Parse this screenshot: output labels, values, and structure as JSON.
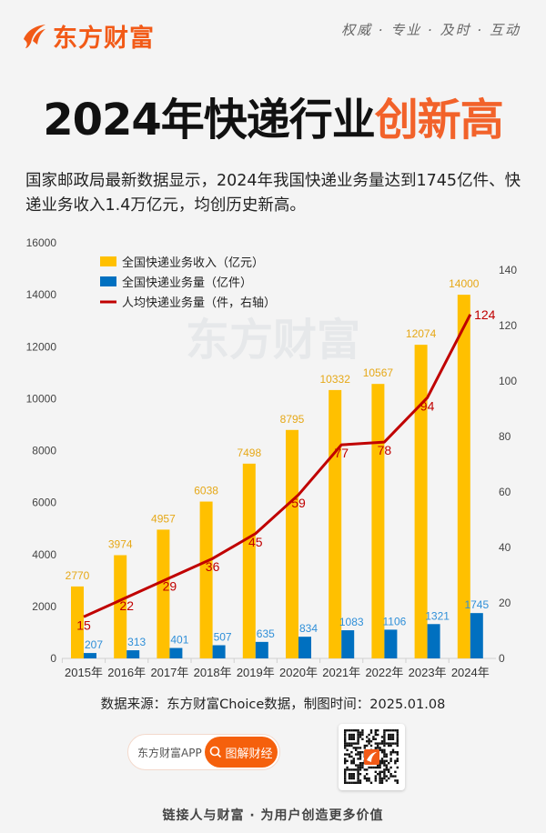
{
  "header": {
    "brand": "东方财富",
    "slogan": "权威 · 专业 · 及时 · 互动"
  },
  "title": {
    "main": "2024年快递行业",
    "highlight": "创新高"
  },
  "summary": "国家邮政局最新数据显示，2024年我国快递业务量达到1745亿件、快递业务收入1.4万亿元，均创历史新高。",
  "watermark": "东方财富",
  "chart_data": {
    "type": "bar",
    "categories": [
      "2015年",
      "2016年",
      "2017年",
      "2018年",
      "2019年",
      "2020年",
      "2021年",
      "2022年",
      "2023年",
      "2024年"
    ],
    "series": [
      {
        "name": "全国快递业务收入（亿元）",
        "type": "bar",
        "axis": "left",
        "color": "#ffc000",
        "values": [
          2770,
          3974,
          4957,
          6038,
          7498,
          8795,
          10332,
          10567,
          12074,
          14000
        ]
      },
      {
        "name": "全国快递业务量（亿件）",
        "type": "bar",
        "axis": "left",
        "color": "#0070c0",
        "values": [
          207,
          313,
          401,
          507,
          635,
          834,
          1083,
          1106,
          1321,
          1745
        ]
      },
      {
        "name": "人均快递业务量（件，右轴）",
        "type": "line",
        "axis": "right",
        "color": "#c00000",
        "values": [
          15,
          22,
          29,
          36,
          45,
          59,
          77,
          78,
          94,
          124
        ]
      }
    ],
    "y_left": {
      "range": [
        0,
        16000
      ],
      "ticks": [
        "0",
        "2000",
        "4000",
        "6000",
        "8000",
        "10000",
        "12000",
        "14000",
        "16000"
      ]
    },
    "y_right": {
      "range": [
        0,
        140
      ],
      "ticks": [
        "0",
        "20",
        "40",
        "60",
        "80",
        "100",
        "120",
        "140"
      ]
    },
    "grid": false,
    "legend": "top-left",
    "label_colors": {
      "revenue": "#e6a817",
      "volume": "#2f8fd8",
      "per_capita": "#c00000"
    }
  },
  "footer": {
    "source": "数据来源：东方财富Choice数据，制图时间：2025.01.08",
    "app_label": "东方财富APP",
    "search_label": "图解财经",
    "tagline": "链接人与财富 · 为用户创造更多价值"
  }
}
